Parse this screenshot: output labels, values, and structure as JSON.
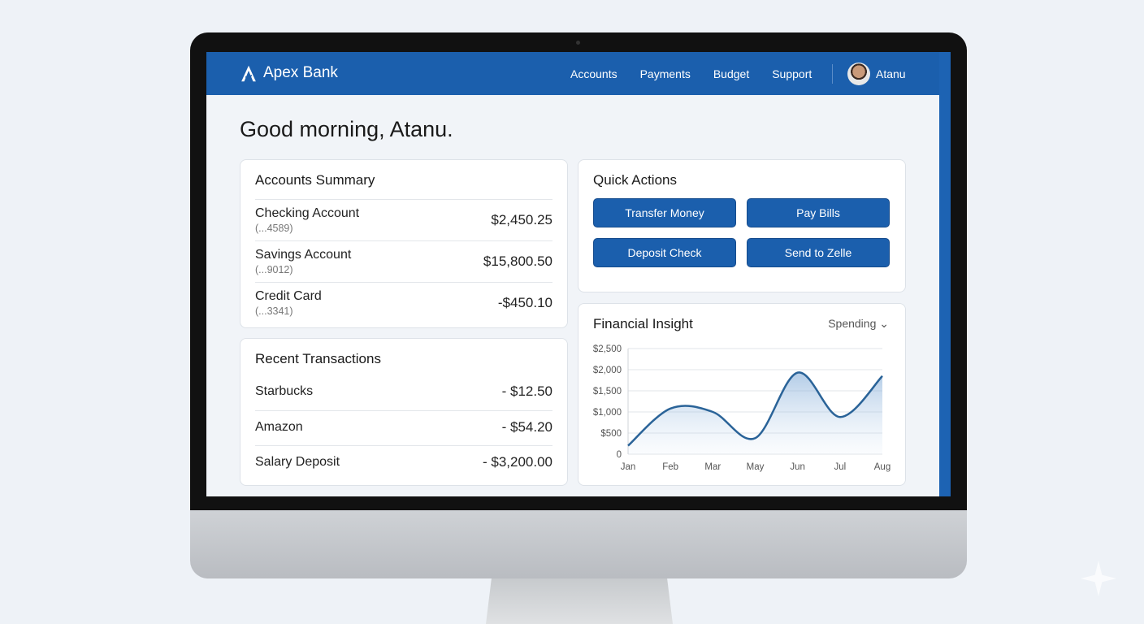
{
  "nav": {
    "brand": "Apex Bank",
    "links": [
      "Accounts",
      "Payments",
      "Budget",
      "Support"
    ],
    "user": "Atanu"
  },
  "greeting": "Good morning, Atanu.",
  "accounts": {
    "title": "Accounts Summary",
    "items": [
      {
        "name": "Checking Account",
        "number": "(...4589)",
        "balance": "$2,450.25"
      },
      {
        "name": "Savings Account",
        "number": "(...9012)",
        "balance": "$15,800.50"
      },
      {
        "name": "Credit Card",
        "number": "(...3341)",
        "balance": "-$450.10"
      }
    ]
  },
  "transactions": {
    "title": "Recent Transactions",
    "items": [
      {
        "name": "Starbucks",
        "amount": "- $12.50"
      },
      {
        "name": "Amazon",
        "amount": "- $54.20"
      },
      {
        "name": "Salary Deposit",
        "amount": "- $3,200.00"
      }
    ]
  },
  "quick_actions": {
    "title": "Quick Actions",
    "buttons": [
      "Transfer Money",
      "Pay Bills",
      "Deposit Check",
      "Send to Zelle"
    ]
  },
  "insight": {
    "title": "Financial Insight",
    "selector": "Spending"
  },
  "colors": {
    "primary": "#1b5fad",
    "line": "#2a6398"
  },
  "chart_data": {
    "type": "area",
    "categories": [
      "Jan",
      "Feb",
      "Mar",
      "May",
      "Jun",
      "Jul",
      "Aug"
    ],
    "values": [
      200,
      1080,
      1000,
      380,
      1930,
      880,
      1850
    ],
    "ylim": [
      0,
      2500
    ],
    "yticks": [
      "0",
      "$500",
      "$1,000",
      "$1,500",
      "$2,000",
      "$2,500"
    ],
    "grid": true
  }
}
